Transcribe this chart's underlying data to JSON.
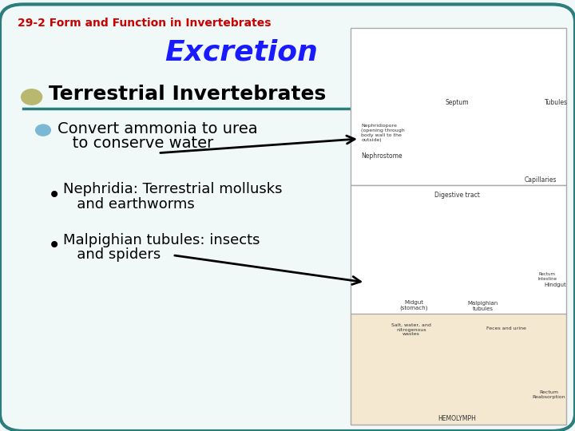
{
  "bg_color": "#f0f8f8",
  "border_color": "#2e7d7d",
  "slide_title": "29-2 Form and Function in Invertebrates",
  "slide_title_color": "#cc0000",
  "main_title": "Excretion",
  "main_title_color": "#1a1aff",
  "bullet1": "Terrestrial Invertebrates",
  "bullet1_color": "#000000",
  "sub_bullet1_line1": "Convert ammonia to urea",
  "sub_bullet1_line2": "   to conserve water",
  "sub_bullet1_color": "#000000",
  "sub_bullet2_line1": "Nephridia: Terrestrial mollusks",
  "sub_bullet2_line2": "   and earthworms",
  "sub_bullet2_color": "#000000",
  "sub_bullet3_line1": "Malpighian tubules: insects",
  "sub_bullet3_line2": "   and spiders",
  "sub_bullet3_color": "#000000",
  "bullet1_dot_color": "#b8b870",
  "sub_bullet_dot_color": "#7ab8d4",
  "line_color": "#2e7d7d",
  "arrow_color": "#000000"
}
